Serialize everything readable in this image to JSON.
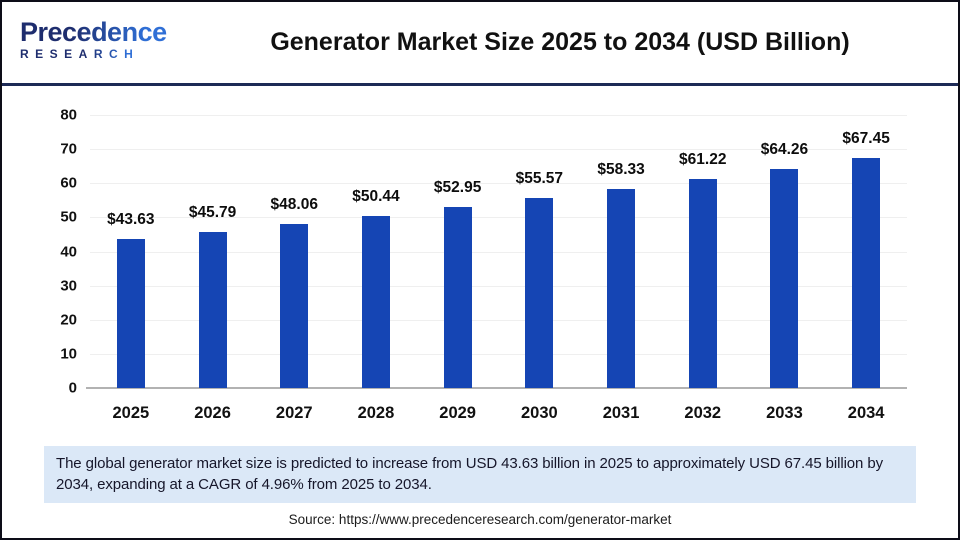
{
  "header": {
    "logo": {
      "brand": "Precedence Research",
      "line1": "Precedence",
      "line2": "RESEARCH"
    },
    "title": "Generator Market Size 2025 to 2034 (USD Billion)"
  },
  "chart_data": {
    "type": "bar",
    "title": "Generator Market Size 2025 to 2034 (USD Billion)",
    "unit": "USD Billion",
    "categories": [
      "2025",
      "2026",
      "2027",
      "2028",
      "2029",
      "2030",
      "2031",
      "2032",
      "2033",
      "2034"
    ],
    "values": [
      43.63,
      45.79,
      48.06,
      50.44,
      52.95,
      55.57,
      58.33,
      61.22,
      64.26,
      67.45
    ],
    "value_label_prefix": "$",
    "ylim": [
      0,
      80
    ],
    "ytick_step": 10,
    "grid": true,
    "legend": "none",
    "bar_color": "#1545b4"
  },
  "callout": {
    "text": "The global generator market size is predicted to increase from USD 43.63 billion in 2025 to approximately USD 67.45 billion by 2034, expanding at a CAGR of 4.96% from 2025 to 2034."
  },
  "source": {
    "text": "Source: https://www.precedenceresearch.com/generator-market"
  },
  "colors": {
    "bar": "#1545b4",
    "separator": "#1d2a56",
    "callout_bg": "#dbe8f7",
    "logo_dark": "#1e2d6e",
    "logo_blue": "#2f6fd6",
    "gridline": "#efefef",
    "axis": "#b2b2b2"
  }
}
